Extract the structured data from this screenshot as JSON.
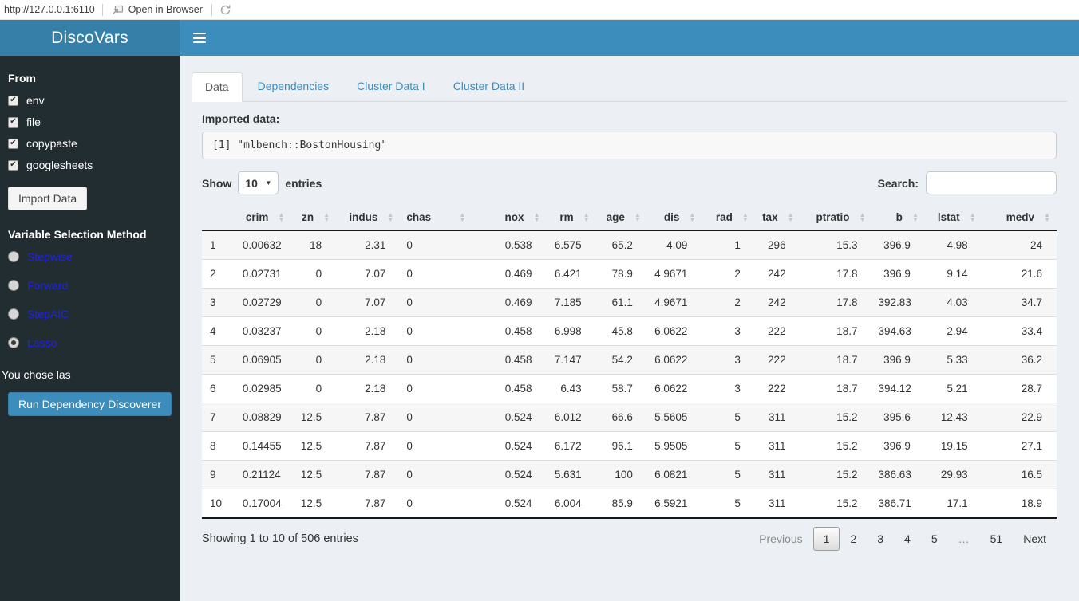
{
  "viewer_bar": {
    "url": "http://127.0.0.1:6110",
    "open_in_browser_label": "Open in Browser"
  },
  "header": {
    "title": "DiscoVars"
  },
  "sidebar": {
    "from_label": "From",
    "sources": [
      {
        "label": "env",
        "checked": true
      },
      {
        "label": "file",
        "checked": true
      },
      {
        "label": "copypaste",
        "checked": true
      },
      {
        "label": "googlesheets",
        "checked": true
      }
    ],
    "import_button_label": "Import Data",
    "method_label": "Variable Selection Method",
    "methods": [
      {
        "label": "Stepwise",
        "selected": false
      },
      {
        "label": "Forward",
        "selected": false
      },
      {
        "label": "StepAIC",
        "selected": false
      },
      {
        "label": "Lasso",
        "selected": true
      }
    ],
    "chose_text": "You chose las",
    "run_button_label": "Run Dependency Discoverer"
  },
  "tabs": [
    {
      "label": "Data",
      "active": true
    },
    {
      "label": "Dependencies",
      "active": false
    },
    {
      "label": "Cluster Data I",
      "active": false
    },
    {
      "label": "Cluster Data II",
      "active": false
    }
  ],
  "main": {
    "imported_label": "Imported data:",
    "code": "[1] \"mlbench::BostonHousing\"",
    "show_label": "Show",
    "page_length": "10",
    "entries_label": "entries",
    "search_label": "Search:",
    "search_value": "",
    "info": "Showing 1 to 10 of 506 entries",
    "pagination": {
      "previous_label": "Previous",
      "pages": [
        "1",
        "2",
        "3",
        "4",
        "5",
        "…",
        "51"
      ],
      "current_page": "1",
      "next_label": "Next"
    }
  },
  "table": {
    "columns": [
      "",
      "crim",
      "zn",
      "indus",
      "chas",
      "nox",
      "rm",
      "age",
      "dis",
      "rad",
      "tax",
      "ptratio",
      "b",
      "lstat",
      "medv"
    ],
    "rows": [
      [
        "1",
        "0.00632",
        "18",
        "2.31",
        "0",
        "0.538",
        "6.575",
        "65.2",
        "4.09",
        "1",
        "296",
        "15.3",
        "396.9",
        "4.98",
        "24"
      ],
      [
        "2",
        "0.02731",
        "0",
        "7.07",
        "0",
        "0.469",
        "6.421",
        "78.9",
        "4.9671",
        "2",
        "242",
        "17.8",
        "396.9",
        "9.14",
        "21.6"
      ],
      [
        "3",
        "0.02729",
        "0",
        "7.07",
        "0",
        "0.469",
        "7.185",
        "61.1",
        "4.9671",
        "2",
        "242",
        "17.8",
        "392.83",
        "4.03",
        "34.7"
      ],
      [
        "4",
        "0.03237",
        "0",
        "2.18",
        "0",
        "0.458",
        "6.998",
        "45.8",
        "6.0622",
        "3",
        "222",
        "18.7",
        "394.63",
        "2.94",
        "33.4"
      ],
      [
        "5",
        "0.06905",
        "0",
        "2.18",
        "0",
        "0.458",
        "7.147",
        "54.2",
        "6.0622",
        "3",
        "222",
        "18.7",
        "396.9",
        "5.33",
        "36.2"
      ],
      [
        "6",
        "0.02985",
        "0",
        "2.18",
        "0",
        "0.458",
        "6.43",
        "58.7",
        "6.0622",
        "3",
        "222",
        "18.7",
        "394.12",
        "5.21",
        "28.7"
      ],
      [
        "7",
        "0.08829",
        "12.5",
        "7.87",
        "0",
        "0.524",
        "6.012",
        "66.6",
        "5.5605",
        "5",
        "311",
        "15.2",
        "395.6",
        "12.43",
        "22.9"
      ],
      [
        "8",
        "0.14455",
        "12.5",
        "7.87",
        "0",
        "0.524",
        "6.172",
        "96.1",
        "5.9505",
        "5",
        "311",
        "15.2",
        "396.9",
        "19.15",
        "27.1"
      ],
      [
        "9",
        "0.21124",
        "12.5",
        "7.87",
        "0",
        "0.524",
        "5.631",
        "100",
        "6.0821",
        "5",
        "311",
        "15.2",
        "386.63",
        "29.93",
        "16.5"
      ],
      [
        "10",
        "0.17004",
        "12.5",
        "7.87",
        "0",
        "0.524",
        "6.004",
        "85.9",
        "6.5921",
        "5",
        "311",
        "15.2",
        "386.71",
        "17.1",
        "18.9"
      ]
    ]
  },
  "colors": {
    "navbar": "#3c8dbc",
    "logo_bg": "#367fa9",
    "sidebar_bg": "#222d32",
    "content_bg": "#ecf0f5",
    "method_link": "#2222dd",
    "inactive_tab_text": "#3c8dbc",
    "active_tab_text": "#555555"
  }
}
